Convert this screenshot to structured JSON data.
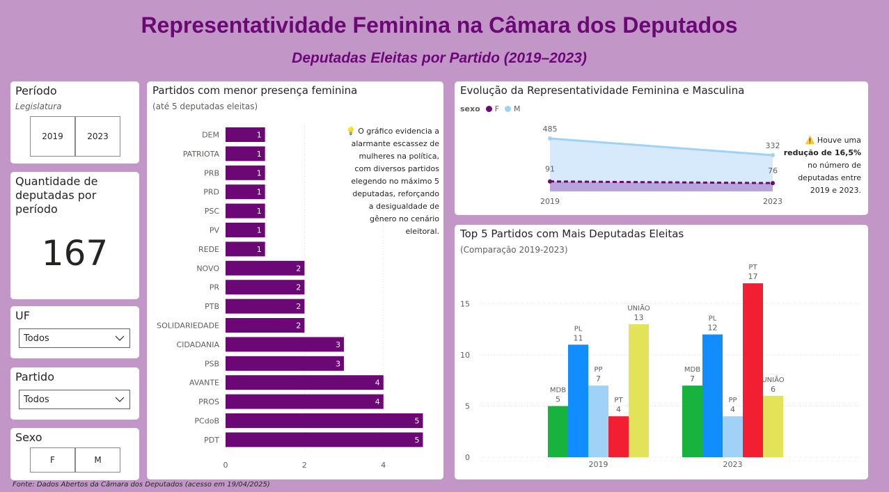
{
  "header": {
    "title": "Representatividade Feminina na Câmara dos Deputados",
    "subtitle": "Deputadas Eleitas por Partido (2019–2023)"
  },
  "periodo": {
    "title": "Período",
    "subtitle": "Legislatura",
    "options": [
      "2019",
      "2023"
    ]
  },
  "kpi": {
    "title": "Quantidade de deputadas por período",
    "value": "167"
  },
  "uf": {
    "title": "UF",
    "selected": "Todos"
  },
  "partido": {
    "title": "Partido",
    "selected": "Todos"
  },
  "sexo": {
    "title": "Sexo",
    "options": [
      "F",
      "M"
    ]
  },
  "footer": "Fonte: Dados Abertos da Câmara dos Deputados (acesso em 19/04/2025)",
  "colors": {
    "brand": "#6b0876",
    "background": "#c297c8",
    "male": "#a0d2f8"
  },
  "chart_data": [
    {
      "type": "bar",
      "orientation": "horizontal",
      "title": "Partidos com menor presença feminina",
      "subtitle": "(até 5 deputadas eleitas)",
      "categories": [
        "DEM",
        "PATRIOTA",
        "PRB",
        "PRD",
        "PSC",
        "PV",
        "REDE",
        "NOVO",
        "PR",
        "PTB",
        "SOLIDARIEDADE",
        "CIDADANIA",
        "PSB",
        "AVANTE",
        "PROS",
        "PCdoB",
        "PDT"
      ],
      "values": [
        1,
        1,
        1,
        1,
        1,
        1,
        1,
        2,
        2,
        2,
        2,
        3,
        3,
        4,
        4,
        5,
        5
      ],
      "xticks": [
        "0",
        "2",
        "4"
      ],
      "xlim": [
        0,
        5.5
      ],
      "color": "#6b0876",
      "annotation": "💡 O gráfico evidencia a alarmante escassez de mulheres na política, com diversos partidos elegendo no máximo 5 deputadas, reforçando a desigualdade de gênero no cenário eleitoral."
    },
    {
      "type": "area",
      "title": "Evolução da Representatividade Feminina e Masculina",
      "legend_title": "sexo",
      "legend_position": "top-left",
      "x": [
        "2019",
        "2023"
      ],
      "series": [
        {
          "name": "F",
          "values": [
            91,
            76
          ],
          "color": "#6b0876"
        },
        {
          "name": "M",
          "values": [
            485,
            332
          ],
          "color": "#a0d2f8"
        }
      ],
      "note_prefix": "⚠️ Houve uma",
      "note_bold": "redução de 16,5%",
      "note_suffix": "no número de deputadas entre 2019 e 2023."
    },
    {
      "type": "bar",
      "title": "Top 5 Partidos com Mais Deputadas Eleitas",
      "subtitle": "(Comparação 2019-2023)",
      "categories": [
        "2019",
        "2023"
      ],
      "groups": [
        {
          "category": "2019",
          "bars": [
            {
              "party": "MDB",
              "value": 5,
              "color": "#17b33e"
            },
            {
              "party": "PL",
              "value": 11,
              "color": "#118dff"
            },
            {
              "party": "PP",
              "value": 7,
              "color": "#a0d2f8"
            },
            {
              "party": "PT",
              "value": 4,
              "color": "#f21f33"
            },
            {
              "party": "UNIÃO",
              "value": 13,
              "color": "#e3e35a"
            }
          ]
        },
        {
          "category": "2023",
          "bars": [
            {
              "party": "MDB",
              "value": 7,
              "color": "#17b33e"
            },
            {
              "party": "PL",
              "value": 12,
              "color": "#118dff"
            },
            {
              "party": "PP",
              "value": 4,
              "color": "#a0d2f8"
            },
            {
              "party": "PT",
              "value": 17,
              "color": "#f21f33"
            },
            {
              "party": "UNIÃO",
              "value": 6,
              "color": "#e3e35a"
            }
          ]
        }
      ],
      "yticks": [
        "0",
        "5",
        "10",
        "15"
      ],
      "ylim": [
        0,
        18
      ],
      "grid": true
    }
  ]
}
